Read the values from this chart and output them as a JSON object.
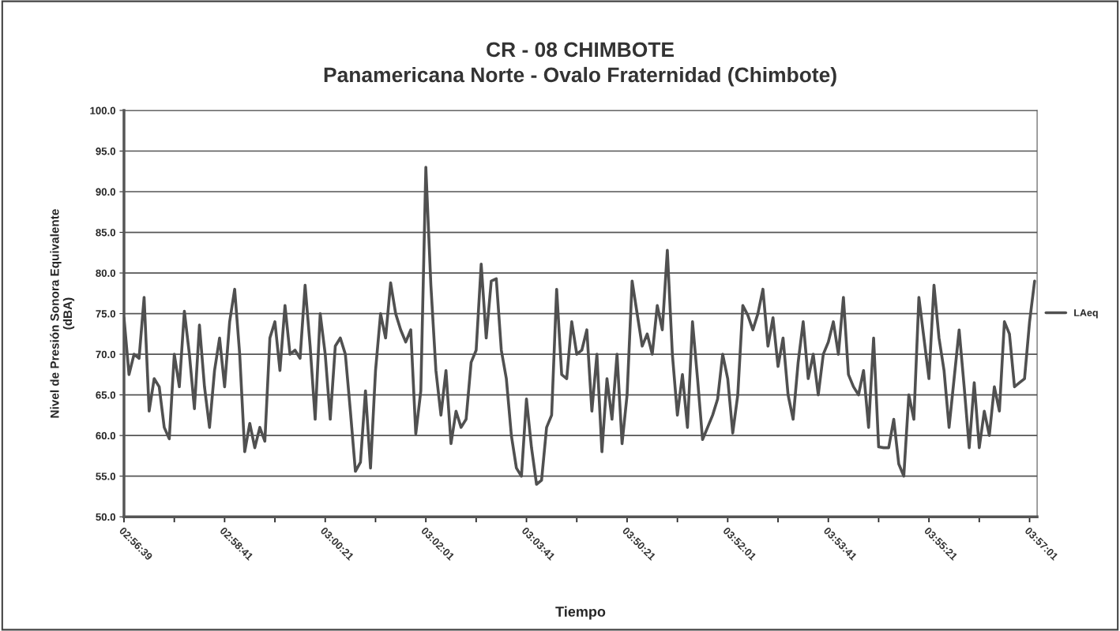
{
  "chart_data": {
    "type": "line",
    "title": "CR - 08 CHIMBOTE",
    "subtitle": "Panamericana Norte - Ovalo Fraternidad (Chimbote)",
    "xlabel": "Tiempo",
    "ylabel": "Nivel de Presión Sonora Equivalente\n(dBA)",
    "categories": [
      "02:56:39",
      null,
      null,
      null,
      null,
      null,
      null,
      null,
      null,
      null,
      null,
      null,
      null,
      null,
      null,
      null,
      null,
      null,
      null,
      null,
      "02:58:41",
      null,
      null,
      null,
      null,
      null,
      null,
      null,
      null,
      null,
      null,
      null,
      null,
      null,
      null,
      null,
      null,
      null,
      null,
      null,
      "03:00:21",
      null,
      null,
      null,
      null,
      null,
      null,
      null,
      null,
      null,
      null,
      null,
      null,
      null,
      null,
      null,
      null,
      null,
      null,
      null,
      "03:02:01",
      null,
      null,
      null,
      null,
      null,
      null,
      null,
      null,
      null,
      null,
      null,
      null,
      null,
      null,
      null,
      null,
      null,
      null,
      null,
      "03:03:41",
      null,
      null,
      null,
      null,
      null,
      null,
      null,
      null,
      null,
      null,
      null,
      null,
      null,
      null,
      null,
      null,
      null,
      null,
      null,
      "03:50:21",
      null,
      null,
      null,
      null,
      null,
      null,
      null,
      null,
      null,
      null,
      null,
      null,
      null,
      null,
      null,
      null,
      null,
      null,
      null,
      "03:52:01",
      null,
      null,
      null,
      null,
      null,
      null,
      null,
      null,
      null,
      null,
      null,
      null,
      null,
      null,
      null,
      null,
      null,
      null,
      null,
      "03:53:41",
      null,
      null,
      null,
      null,
      null,
      null,
      null,
      null,
      null,
      null,
      null,
      null,
      null,
      null,
      null,
      null,
      null,
      null,
      null,
      "03:55:21",
      null,
      null,
      null,
      null,
      null,
      null,
      null,
      null,
      null,
      null,
      null,
      null,
      null,
      null,
      null,
      null,
      null,
      null,
      null,
      "03:57:01",
      null
    ],
    "series": [
      {
        "name": "LAeq",
        "color": "#505050",
        "values": [
          74.5,
          67.5,
          70,
          69.5,
          77,
          63,
          67,
          66,
          61,
          59.6,
          70,
          66,
          75.3,
          70,
          63.3,
          73.6,
          66,
          61,
          68,
          72,
          66,
          74,
          78,
          70,
          58,
          61.5,
          58.5,
          61,
          59.3,
          72,
          74,
          68,
          76,
          70,
          70.5,
          69.5,
          78.5,
          71,
          62,
          75,
          70,
          62,
          71,
          72,
          70,
          63,
          55.6,
          56.7,
          65.5,
          56,
          68,
          75,
          72,
          78.8,
          75,
          73,
          71.5,
          73,
          60.2,
          65.5,
          93,
          78.5,
          68,
          62.5,
          68,
          59,
          63,
          61,
          62,
          69,
          70.5,
          81.1,
          72,
          79,
          79.3,
          70.5,
          67,
          60,
          56,
          55,
          64.5,
          58.5,
          54,
          54.5,
          61,
          62.5,
          78,
          67.5,
          67,
          74,
          70,
          70.5,
          73,
          63,
          70,
          58,
          67,
          62,
          70,
          59,
          65,
          79,
          75,
          71,
          72.5,
          70,
          76,
          73,
          82.8,
          70,
          62.5,
          67.5,
          61,
          74,
          67,
          59.5,
          61,
          62.5,
          64.5,
          70,
          67,
          60.3,
          65,
          76,
          74.8,
          73,
          75,
          78,
          71,
          74.5,
          68.5,
          72,
          65,
          62,
          69,
          74,
          67,
          70,
          65,
          70,
          71.5,
          74,
          70,
          77,
          67.5,
          66,
          65,
          68,
          61,
          72,
          58.6,
          58.5,
          58.5,
          62,
          56.5,
          55,
          65,
          62,
          77,
          72,
          67,
          78.5,
          72,
          68,
          61,
          67,
          73,
          66,
          58.5,
          66.5,
          58.5,
          63,
          60,
          66,
          63,
          74,
          72.5,
          66,
          66.5,
          67,
          74,
          79
        ]
      }
    ],
    "ylim": [
      50,
      100
    ],
    "yticks": [
      {
        "value": 50,
        "label": "50.0"
      },
      {
        "value": 55,
        "label": "55.0"
      },
      {
        "value": 60,
        "label": "60.0"
      },
      {
        "value": 65,
        "label": "65.0"
      },
      {
        "value": 70,
        "label": "70.0"
      },
      {
        "value": 75,
        "label": "75.0"
      },
      {
        "value": 80,
        "label": "80.0"
      },
      {
        "value": 85,
        "label": "85.0"
      },
      {
        "value": 90,
        "label": "90.0"
      },
      {
        "value": 95,
        "label": "95.0"
      },
      {
        "value": 100,
        "label": "100.0"
      }
    ],
    "grid": "y",
    "legend": "right"
  }
}
